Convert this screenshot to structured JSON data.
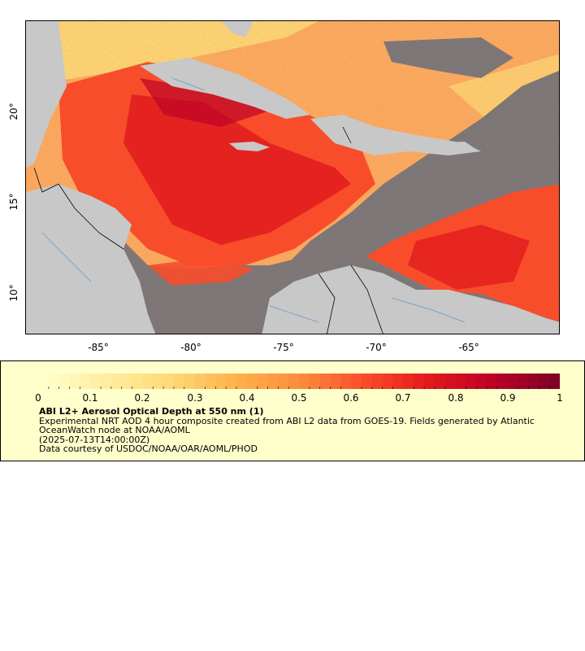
{
  "map": {
    "x_axis": {
      "ticks": [
        "-85°",
        "-80°",
        "-75°",
        "-70°",
        "-65°"
      ]
    },
    "y_axis": {
      "ticks": [
        "20°",
        "15°",
        "10°"
      ]
    },
    "colors": {
      "land": "#c8c8c8",
      "no_data": "#7a7a7a",
      "border": "#000000",
      "rivers": "#6699cc"
    }
  },
  "colorbar": {
    "range": [
      0,
      1
    ],
    "ticks": [
      "0",
      "0.1",
      "0.2",
      "0.3",
      "0.4",
      "0.5",
      "0.6",
      "0.7",
      "0.8",
      "0.9",
      "1"
    ],
    "colors": [
      "#ffffcc",
      "#ffeda0",
      "#fed976",
      "#feb24c",
      "#fd8d3c",
      "#fc4e2a",
      "#e31a1c",
      "#bd0026",
      "#800026"
    ]
  },
  "legend": {
    "title": "ABI L2+ Aerosol Optical Depth at 550 nm (1)",
    "line1": "Experimental NRT AOD 4 hour composite created from ABI L2 data from GOES-19. Fields generated by Atlantic",
    "line2": "OceanWatch node at NOAA/AOML",
    "line3": "(2025-07-13T14:00:00Z)",
    "line4": "Data courtesy of USDOC/NOAA/OAR/AOML/PHOD"
  }
}
